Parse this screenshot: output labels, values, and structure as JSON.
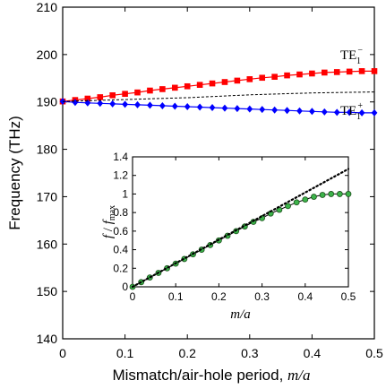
{
  "chart_data": [
    {
      "type": "scatter",
      "xlabel": "Mismatch/air-hole period, ",
      "xlabel_italic": "m/a",
      "ylabel": "Frequency (THz)",
      "xlim": [
        0,
        0.5
      ],
      "ylim": [
        140,
        210
      ],
      "xticks": [
        "0",
        "0.1",
        "0.2",
        "0.3",
        "0.4",
        "0.5"
      ],
      "yticks": [
        "140",
        "150",
        "160",
        "170",
        "180",
        "190",
        "200",
        "210"
      ],
      "grid": false,
      "series": [
        {
          "name": "TE1-",
          "label_main": "TE",
          "label_sub": "1",
          "label_sup": "−",
          "color": "#ff0000",
          "marker": "square",
          "x": [
            0,
            0.02,
            0.04,
            0.06,
            0.08,
            0.1,
            0.12,
            0.14,
            0.16,
            0.18,
            0.2,
            0.22,
            0.24,
            0.26,
            0.28,
            0.3,
            0.32,
            0.34,
            0.36,
            0.38,
            0.4,
            0.42,
            0.44,
            0.46,
            0.48,
            0.5
          ],
          "y": [
            190.1,
            190.4,
            190.7,
            191.0,
            191.4,
            191.7,
            192.0,
            192.4,
            192.7,
            193.0,
            193.3,
            193.6,
            193.9,
            194.2,
            194.5,
            194.8,
            195.1,
            195.3,
            195.6,
            195.8,
            196.0,
            196.2,
            196.3,
            196.4,
            196.5,
            196.5
          ]
        },
        {
          "name": "TE1+",
          "label_main": "TE",
          "label_sub": "1",
          "label_sup": "+",
          "color": "#0000ff",
          "marker": "diamond",
          "x": [
            0,
            0.02,
            0.04,
            0.06,
            0.08,
            0.1,
            0.12,
            0.14,
            0.16,
            0.18,
            0.2,
            0.22,
            0.24,
            0.26,
            0.28,
            0.3,
            0.32,
            0.34,
            0.36,
            0.38,
            0.4,
            0.42,
            0.44,
            0.46,
            0.48,
            0.5
          ],
          "y": [
            190.1,
            189.9,
            189.8,
            189.7,
            189.6,
            189.5,
            189.4,
            189.3,
            189.2,
            189.1,
            189.0,
            188.9,
            188.8,
            188.7,
            188.6,
            188.5,
            188.4,
            188.3,
            188.2,
            188.1,
            188.0,
            187.9,
            187.8,
            187.8,
            187.7,
            187.7
          ]
        },
        {
          "style": "dashed",
          "color": "#000000",
          "x": [
            0,
            0.05,
            0.1,
            0.15,
            0.2,
            0.25,
            0.3,
            0.35,
            0.4,
            0.45,
            0.5
          ],
          "y": [
            190.1,
            190.3,
            190.5,
            190.7,
            190.9,
            191.2,
            191.5,
            191.7,
            191.9,
            192.0,
            192.1
          ]
        }
      ]
    },
    {
      "type": "scatter",
      "inset": true,
      "xlabel": "m/a",
      "ylabel_f": "f",
      "ylabel_slash": " / ",
      "ylabel_fmax": "f",
      "ylabel_sub": "max",
      "xlim": [
        0,
        0.5
      ],
      "ylim": [
        0,
        1.4
      ],
      "xticks": [
        "0",
        "0.1",
        "0.2",
        "0.3",
        "0.4",
        "0.5"
      ],
      "yticks": [
        "0",
        "0.2",
        "0.4",
        "0.6",
        "0.8",
        "1",
        "1.2",
        "1.4"
      ],
      "series": [
        {
          "color": "#3cb34a",
          "marker": "circle",
          "x": [
            0,
            0.02,
            0.04,
            0.06,
            0.08,
            0.1,
            0.12,
            0.14,
            0.16,
            0.18,
            0.2,
            0.22,
            0.24,
            0.26,
            0.28,
            0.3,
            0.32,
            0.34,
            0.36,
            0.38,
            0.4,
            0.42,
            0.44,
            0.46,
            0.48,
            0.5
          ],
          "y": [
            0.0,
            0.05,
            0.1,
            0.15,
            0.2,
            0.25,
            0.3,
            0.35,
            0.4,
            0.45,
            0.5,
            0.55,
            0.6,
            0.65,
            0.7,
            0.74,
            0.79,
            0.83,
            0.87,
            0.91,
            0.94,
            0.97,
            0.99,
            1.0,
            1.0,
            1.0
          ]
        },
        {
          "style": "dotted",
          "color": "#000000",
          "x": [
            0,
            0.5
          ],
          "y": [
            0,
            1.27
          ]
        }
      ]
    }
  ]
}
